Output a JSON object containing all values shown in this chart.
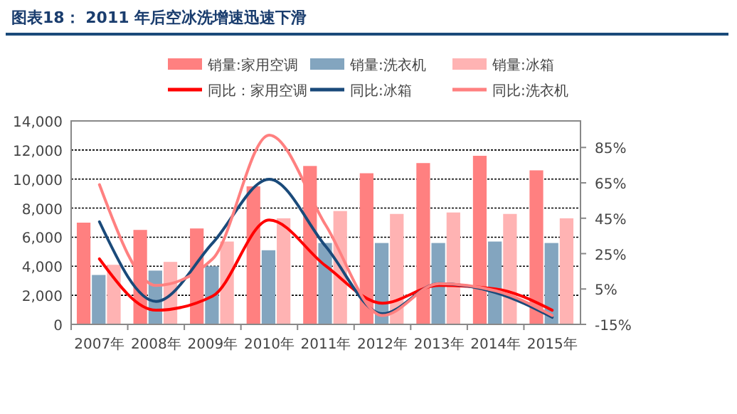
{
  "chart_data": {
    "type": "bar",
    "title": "图表18：  2011 年后空冰洗增速迅速下滑",
    "categories": [
      "2007年",
      "2008年",
      "2009年",
      "2010年",
      "2011年",
      "2012年",
      "2013年",
      "2014年",
      "2015年"
    ],
    "series": [
      {
        "name": "销量:家用空调",
        "color": "#ff8080",
        "values": [
          7000,
          6500,
          6600,
          9500,
          10900,
          10400,
          11100,
          11600,
          10600
        ]
      },
      {
        "name": "销量:洗衣机",
        "color": "#83a5bf",
        "values": [
          3400,
          3700,
          4000,
          5100,
          5600,
          5600,
          5600,
          5700,
          5600
        ]
      },
      {
        "name": "销量:冰箱",
        "color": "#ffb3b3",
        "values": [
          4100,
          4300,
          5700,
          7300,
          7800,
          7600,
          7700,
          7600,
          7300
        ]
      },
      {
        "name": "同比：家用空调",
        "type": "line",
        "axis": "y2",
        "color": "#ff0000",
        "values": [
          22,
          -7,
          1,
          44,
          18,
          -3,
          7,
          5,
          -7
        ]
      },
      {
        "name": "同比:冰箱",
        "type": "line",
        "axis": "y2",
        "color": "#1a4a7a",
        "values": [
          43,
          -2,
          31,
          67,
          29,
          -9,
          8,
          3,
          -11
        ]
      },
      {
        "name": "同比:洗衣机",
        "type": "line",
        "axis": "y2",
        "color": "#ff8080",
        "values": [
          64,
          7,
          22,
          92,
          41,
          -10,
          8,
          4,
          -10
        ]
      }
    ],
    "ylim": [
      0,
      14000
    ],
    "yticks": [
      {
        "value": 0,
        "label": "0"
      },
      {
        "value": 2000,
        "label": "2,000"
      },
      {
        "value": 4000,
        "label": "4,000"
      },
      {
        "value": 6000,
        "label": "6,000"
      },
      {
        "value": 8000,
        "label": "8,000"
      },
      {
        "value": 10000,
        "label": "10,000"
      },
      {
        "value": 12000,
        "label": "12,000"
      },
      {
        "value": 14000,
        "label": "14,000"
      }
    ],
    "y2lim": [
      -15,
      100
    ],
    "y2ticks": [
      {
        "value": -15,
        "label": "-15%"
      },
      {
        "value": 5,
        "label": "5%"
      },
      {
        "value": 25,
        "label": "25%"
      },
      {
        "value": 45,
        "label": "45%"
      },
      {
        "value": 65,
        "label": "65%"
      },
      {
        "value": 85,
        "label": "85%"
      }
    ],
    "grid": "y",
    "legend": "top"
  }
}
